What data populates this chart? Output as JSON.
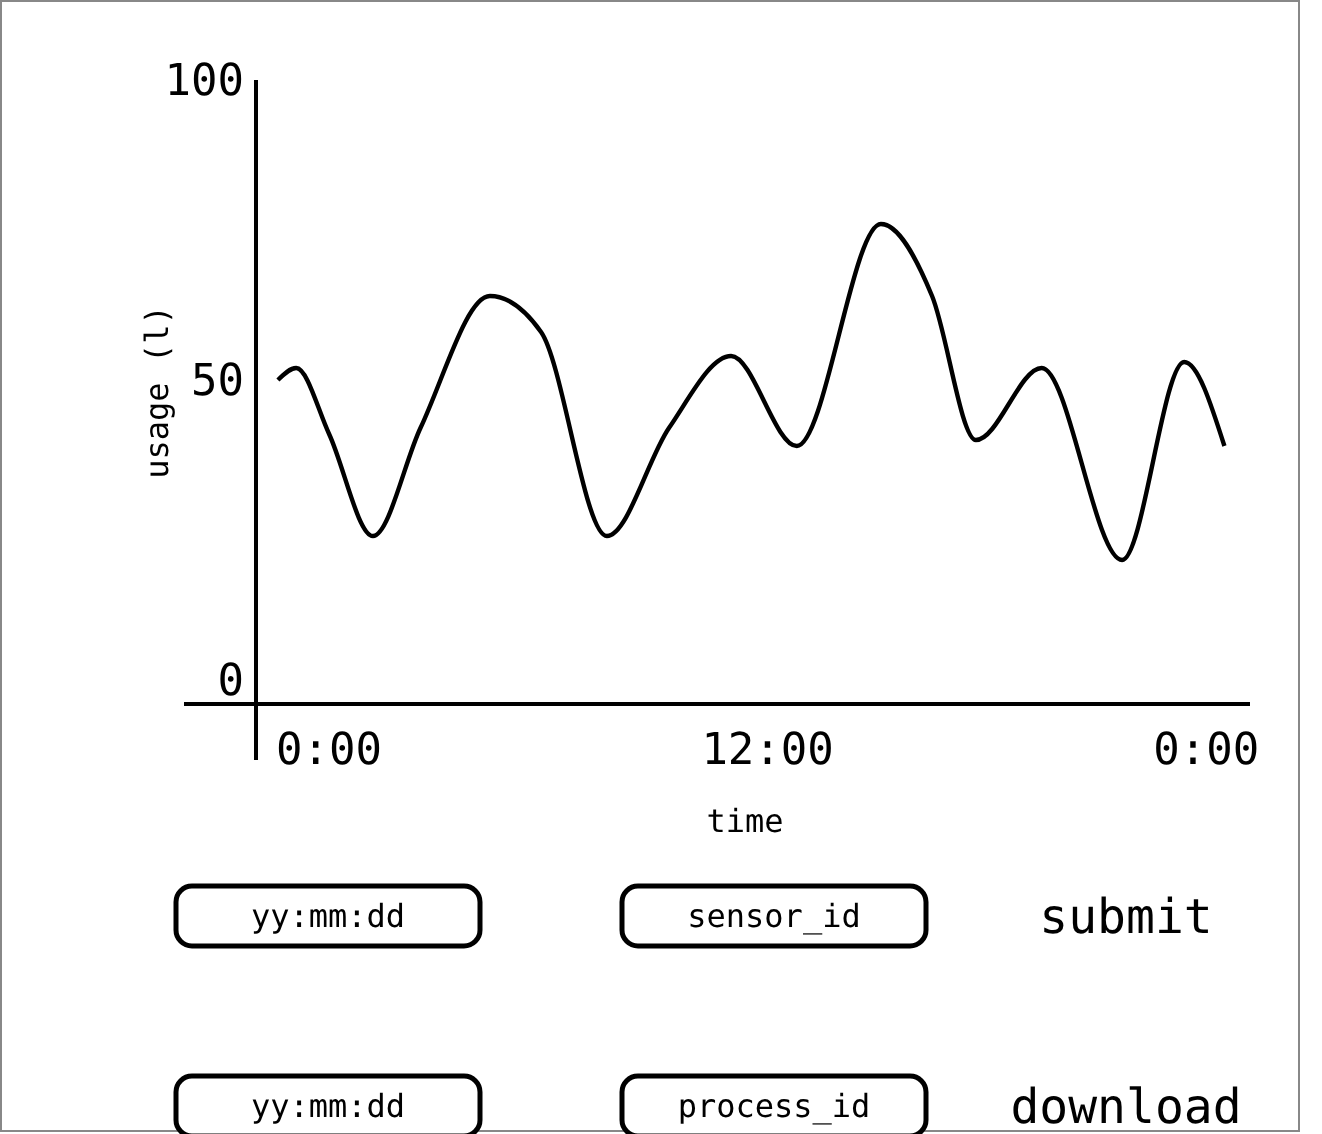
{
  "chart_data": {
    "type": "line",
    "xlabel": "time",
    "ylabel": "usage (l)",
    "x": [
      -1.4,
      -0.9,
      0,
      1.2,
      2.5,
      4.4,
      5.8,
      7.6,
      9.3,
      11,
      12.8,
      15.1,
      16.5,
      17.7,
      19.5,
      21.7,
      23.4,
      24.5
    ],
    "series": [
      {
        "color": "#000000",
        "values": [
          50,
          52,
          41,
          24,
          42,
          64,
          58,
          24,
          42,
          54,
          39,
          76,
          64,
          40,
          52,
          20,
          53,
          39
        ]
      }
    ],
    "xlim": [
      -2,
      25.2
    ],
    "ylim": [
      -4,
      100
    ],
    "xticks": [
      {
        "value": 0,
        "label": "0:00"
      },
      {
        "value": 12,
        "label": "12:00"
      },
      {
        "value": 24,
        "label": "0:00"
      }
    ],
    "yticks": [
      0,
      50,
      100
    ],
    "grid": false,
    "marker": "none",
    "line_style": "solid",
    "annotations": [
      "yy:mm:dd",
      "sensor_id",
      "submit",
      "yy:mm:dd",
      "process_id",
      "download"
    ]
  }
}
